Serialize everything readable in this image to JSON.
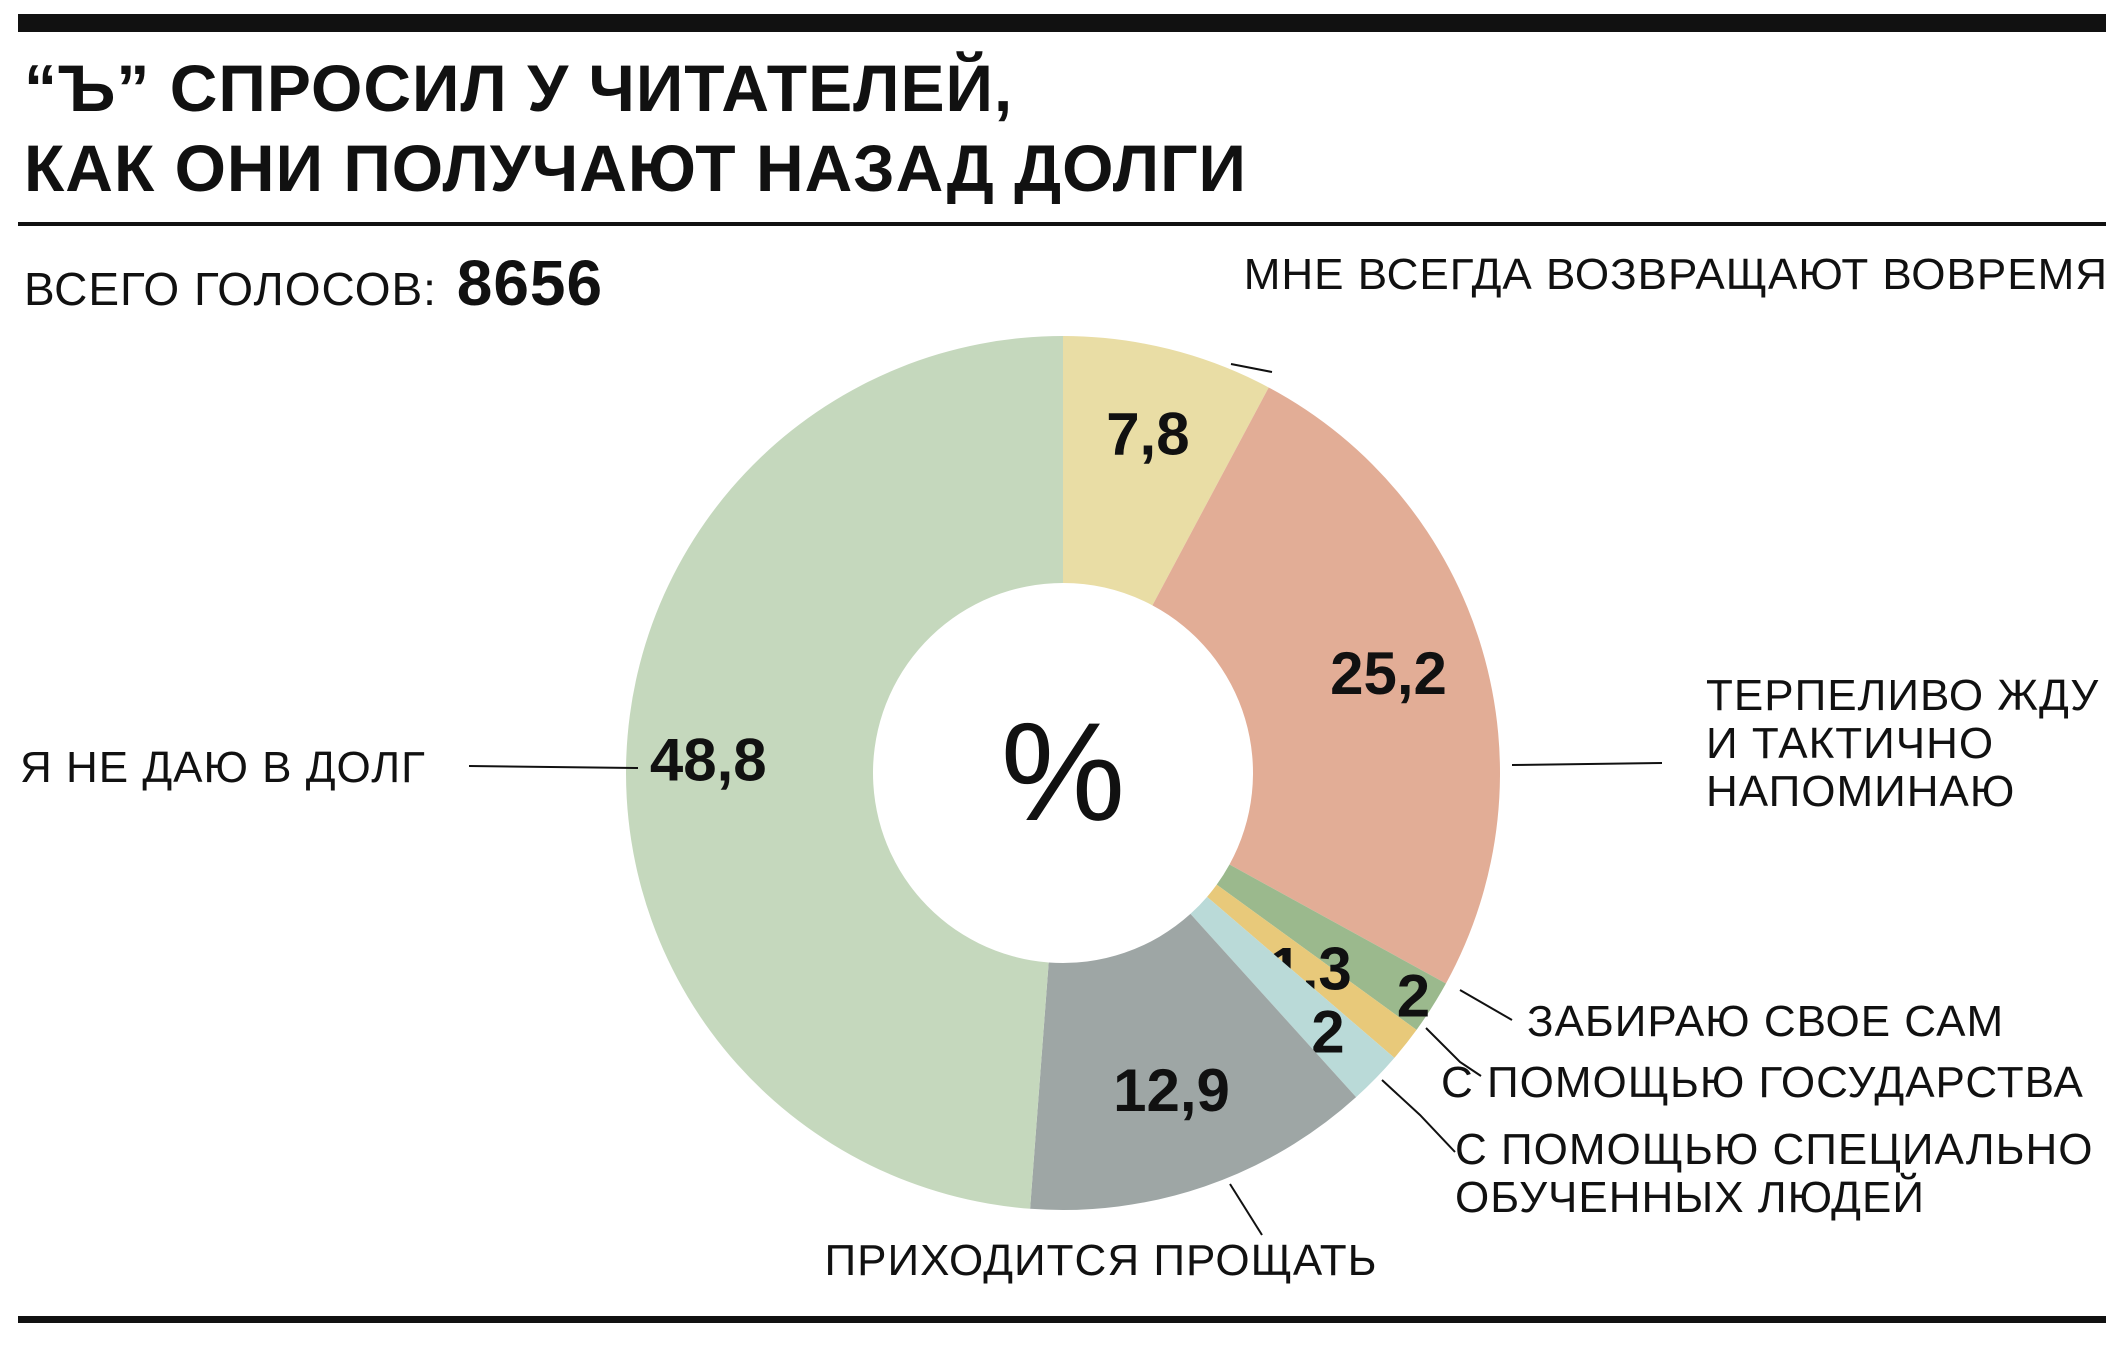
{
  "title_lines": [
    "“Ъ” СПРОСИЛ У ЧИТАТЕЛЕЙ,",
    "КАК ОНИ ПОЛУЧАЮТ НАЗАД ДОЛГИ"
  ],
  "total": {
    "label": "ВСЕГО ГОЛОСОВ:",
    "value": "8656"
  },
  "chart_data": {
    "type": "pie",
    "center_label": "%",
    "slices": [
      {
        "label": [
          "МНЕ ВСЕГДА ВОЗВРАЩАЮТ ВОВРЕМЯ"
        ],
        "value": 7.8,
        "value_label": "7,8",
        "color": "#e9dda5"
      },
      {
        "label": [
          "ТЕРПЕЛИВО ЖДУ",
          "И ТАКТИЧНО",
          "НАПОМИНАЮ"
        ],
        "value": 25.2,
        "value_label": "25,2",
        "color": "#e2ad96"
      },
      {
        "label": [
          "ЗАБИРАЮ СВОЕ САМ"
        ],
        "value": 2,
        "value_label": "2",
        "color": "#9bb98d"
      },
      {
        "label": [
          "С ПОМОЩЬЮ ГОСУДАРСТВА"
        ],
        "value": 1.3,
        "value_label": "1,3",
        "color": "#e8c97a"
      },
      {
        "label": [
          "С ПОМОЩЬЮ СПЕЦИАЛЬНО",
          "ОБУЧЕННЫХ ЛЮДЕЙ"
        ],
        "value": 2,
        "value_label": "2",
        "color": "#badad8"
      },
      {
        "label": [
          "ПРИХОДИТСЯ ПРОЩАТЬ"
        ],
        "value": 12.9,
        "value_label": "12,9",
        "color": "#9ea6a5"
      },
      {
        "label": [
          "Я НЕ ДАЮ В ДОЛГ"
        ],
        "value": 48.8,
        "value_label": "48,8",
        "color": "#c5d8bd"
      }
    ]
  }
}
